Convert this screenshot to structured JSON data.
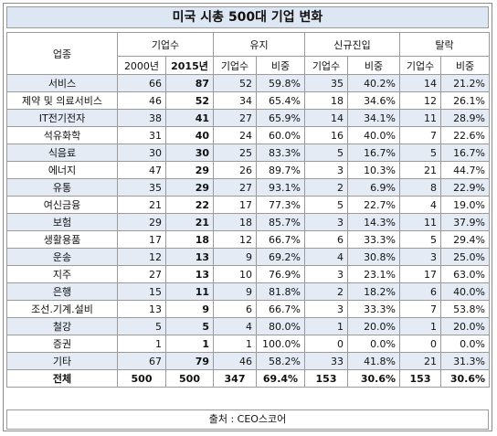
{
  "title": "미국 시총 500대 기업 변화",
  "headers": {
    "category": "업종",
    "groups": [
      "기업수",
      "유지",
      "신규진입",
      "탈락"
    ],
    "sub": [
      "2000년",
      "2015년",
      "기업수",
      "비중",
      "기업수",
      "비중",
      "기업수",
      "비중"
    ]
  },
  "rows": [
    {
      "name": "서비스",
      "c2000": "66",
      "c2015": "87",
      "keep_n": "52",
      "keep_p": "59.8%",
      "new_n": "35",
      "new_p": "40.2%",
      "drop_n": "14",
      "drop_p": "21.2%"
    },
    {
      "name": "제약 및 의료서비스",
      "c2000": "46",
      "c2015": "52",
      "keep_n": "34",
      "keep_p": "65.4%",
      "new_n": "18",
      "new_p": "34.6%",
      "drop_n": "12",
      "drop_p": "26.1%"
    },
    {
      "name": "IT전기전자",
      "c2000": "38",
      "c2015": "41",
      "keep_n": "27",
      "keep_p": "65.9%",
      "new_n": "14",
      "new_p": "34.1%",
      "drop_n": "11",
      "drop_p": "28.9%"
    },
    {
      "name": "석유화학",
      "c2000": "31",
      "c2015": "40",
      "keep_n": "24",
      "keep_p": "60.0%",
      "new_n": "16",
      "new_p": "40.0%",
      "drop_n": "7",
      "drop_p": "22.6%"
    },
    {
      "name": "식음료",
      "c2000": "30",
      "c2015": "30",
      "keep_n": "25",
      "keep_p": "83.3%",
      "new_n": "5",
      "new_p": "16.7%",
      "drop_n": "5",
      "drop_p": "16.7%"
    },
    {
      "name": "에너지",
      "c2000": "47",
      "c2015": "29",
      "keep_n": "26",
      "keep_p": "89.7%",
      "new_n": "3",
      "new_p": "10.3%",
      "drop_n": "21",
      "drop_p": "44.7%"
    },
    {
      "name": "유통",
      "c2000": "35",
      "c2015": "29",
      "keep_n": "27",
      "keep_p": "93.1%",
      "new_n": "2",
      "new_p": "6.9%",
      "drop_n": "8",
      "drop_p": "22.9%"
    },
    {
      "name": "여신금융",
      "c2000": "21",
      "c2015": "22",
      "keep_n": "17",
      "keep_p": "77.3%",
      "new_n": "5",
      "new_p": "22.7%",
      "drop_n": "4",
      "drop_p": "19.0%"
    },
    {
      "name": "보험",
      "c2000": "29",
      "c2015": "21",
      "keep_n": "18",
      "keep_p": "85.7%",
      "new_n": "3",
      "new_p": "14.3%",
      "drop_n": "11",
      "drop_p": "37.9%"
    },
    {
      "name": "생활용품",
      "c2000": "17",
      "c2015": "18",
      "keep_n": "12",
      "keep_p": "66.7%",
      "new_n": "6",
      "new_p": "33.3%",
      "drop_n": "5",
      "drop_p": "29.4%"
    },
    {
      "name": "운송",
      "c2000": "12",
      "c2015": "13",
      "keep_n": "9",
      "keep_p": "69.2%",
      "new_n": "4",
      "new_p": "30.8%",
      "drop_n": "3",
      "drop_p": "25.0%"
    },
    {
      "name": "지주",
      "c2000": "27",
      "c2015": "13",
      "keep_n": "10",
      "keep_p": "76.9%",
      "new_n": "3",
      "new_p": "23.1%",
      "drop_n": "17",
      "drop_p": "63.0%"
    },
    {
      "name": "은행",
      "c2000": "15",
      "c2015": "11",
      "keep_n": "9",
      "keep_p": "81.8%",
      "new_n": "2",
      "new_p": "18.2%",
      "drop_n": "6",
      "drop_p": "40.0%"
    },
    {
      "name": "조선.기계.설비",
      "c2000": "13",
      "c2015": "9",
      "keep_n": "6",
      "keep_p": "66.7%",
      "new_n": "3",
      "new_p": "33.3%",
      "drop_n": "7",
      "drop_p": "53.8%"
    },
    {
      "name": "철강",
      "c2000": "5",
      "c2015": "5",
      "keep_n": "4",
      "keep_p": "80.0%",
      "new_n": "1",
      "new_p": "20.0%",
      "drop_n": "1",
      "drop_p": "20.0%"
    },
    {
      "name": "증권",
      "c2000": "1",
      "c2015": "1",
      "keep_n": "1",
      "keep_p": "100.0%",
      "new_n": "0",
      "new_p": "0.0%",
      "drop_n": "0",
      "drop_p": "0.0%"
    },
    {
      "name": "기타",
      "c2000": "67",
      "c2015": "79",
      "keep_n": "46",
      "keep_p": "58.2%",
      "new_n": "33",
      "new_p": "41.8%",
      "drop_n": "21",
      "drop_p": "31.3%"
    }
  ],
  "total": {
    "name": "전체",
    "c2000": "500",
    "c2015": "500",
    "keep_n": "347",
    "keep_p": "69.4%",
    "new_n": "153",
    "new_p": "30.6%",
    "drop_n": "153",
    "drop_p": "30.6%"
  },
  "source": "출처 : CEO스코어",
  "colors": {
    "header_fill": "#dde6f3",
    "row_shade": "#e4ebf5",
    "border": "#9a9a9a"
  }
}
